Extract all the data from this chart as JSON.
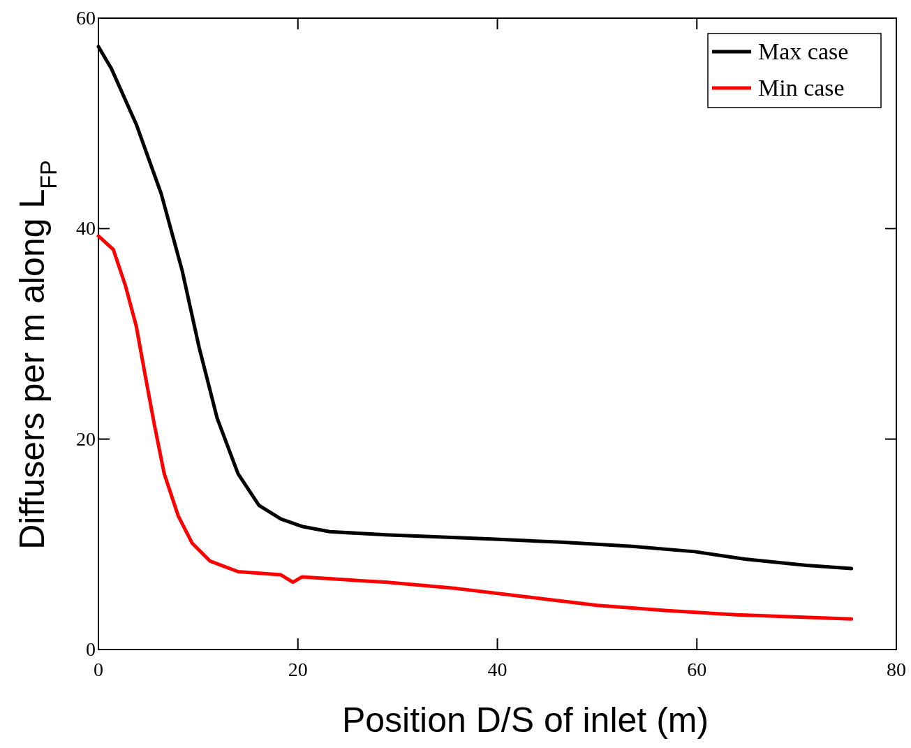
{
  "chart_data": {
    "type": "line",
    "xlabel": "Position D/S of inlet (m)",
    "ylabel": "Diffusers per m along L$_{FP}$",
    "xlim": [
      0,
      80
    ],
    "ylim": [
      0,
      60
    ],
    "xticks": [
      0,
      20,
      40,
      60,
      80
    ],
    "yticks": [
      0,
      20,
      40,
      60
    ],
    "legend": "top right",
    "grid": false,
    "line_style": "solid",
    "marker": "none",
    "series": [
      {
        "name": "Max case",
        "color": "#000000",
        "x": [
          0,
          1.3,
          3.8,
          6.3,
          8.4,
          10.1,
          11.9,
          14,
          16.1,
          18.3,
          20.4,
          23.2,
          28.8,
          39.4,
          46.4,
          53.5,
          59.8,
          64.8,
          71,
          75.5
        ],
        "values": [
          57.3,
          55.2,
          49.9,
          43.3,
          36,
          28.7,
          22,
          16.7,
          13.7,
          12.4,
          11.7,
          11.2,
          10.9,
          10.5,
          10.2,
          9.8,
          9.3,
          8.6,
          8.0,
          7.7
        ]
      },
      {
        "name": "Min case",
        "color": "#ff0000",
        "x": [
          0,
          1.5,
          2.7,
          3.8,
          4.7,
          5.6,
          6.6,
          8,
          9.4,
          11.2,
          14,
          18.3,
          19.5,
          20.4,
          25.3,
          28.8,
          35.9,
          43,
          50,
          57,
          64,
          75.5
        ],
        "values": [
          39.3,
          38,
          34.6,
          30.7,
          26,
          21.4,
          16.7,
          12.7,
          10.1,
          8.4,
          7.4,
          7.1,
          6.4,
          6.9,
          6.6,
          6.4,
          5.8,
          5.0,
          4.2,
          3.7,
          3.3,
          2.9
        ]
      }
    ]
  }
}
